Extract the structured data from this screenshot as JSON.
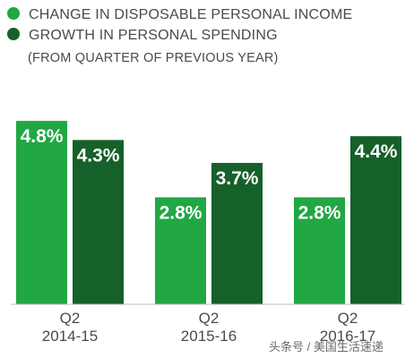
{
  "legend": [
    {
      "label": "CHANGE IN DISPOSABLE PERSONAL INCOME",
      "color": "#21a744"
    },
    {
      "label": "GROWTH IN PERSONAL SPENDING",
      "color": "#16602a"
    }
  ],
  "subtitle": "(FROM QUARTER OF PREVIOUS YEAR)",
  "watermark": "头条号 / 美国生活速递",
  "chart_data": {
    "type": "bar",
    "categories": [
      [
        "Q2",
        "2014-15"
      ],
      [
        "Q2",
        "2015-16"
      ],
      [
        "Q2",
        "2016-17"
      ]
    ],
    "series": [
      {
        "name": "CHANGE IN DISPOSABLE PERSONAL INCOME",
        "values": [
          4.8,
          2.8,
          2.8
        ],
        "labels": [
          "4.8%",
          "2.8%",
          "2.8%"
        ],
        "color": "#21a744"
      },
      {
        "name": "GROWTH IN PERSONAL SPENDING",
        "values": [
          4.3,
          3.7,
          4.4
        ],
        "labels": [
          "4.3%",
          "3.7%",
          "4.4%"
        ],
        "color": "#16602a"
      }
    ],
    "ylim": [
      0,
      5.2
    ],
    "grid": false,
    "legend_position": "top-left"
  }
}
